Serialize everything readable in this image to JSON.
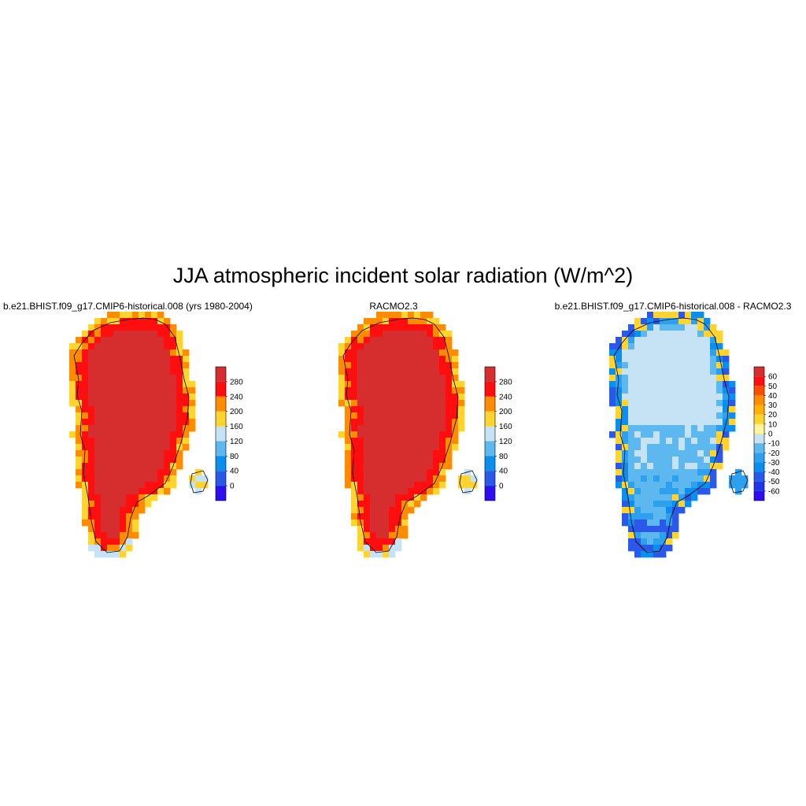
{
  "figure": {
    "title": "JJA atmospheric incident solar radiation (W/m^2)"
  },
  "panels": [
    {
      "title": "b.e21.BHIST.f09_g17.CMIP6-historical.008 (yrs 1980-2004)",
      "kind": "abs",
      "colorbar": {
        "labels": [
          "280",
          "240",
          "200",
          "160",
          "120",
          "80",
          "40",
          "0"
        ],
        "colors": [
          "#d62e2e",
          "#fe0e0e",
          "#ff8c00",
          "#ffd42f",
          "#c5e3f4",
          "#5cb8ee",
          "#0a8fef",
          "#2a58e8",
          "#2e0ef1"
        ]
      }
    },
    {
      "title": "RACMO2.3",
      "kind": "abs",
      "colorbar": {
        "labels": [
          "280",
          "240",
          "200",
          "160",
          "120",
          "80",
          "40",
          "0"
        ],
        "colors": [
          "#d62e2e",
          "#fe0e0e",
          "#ff8c00",
          "#ffd42f",
          "#c5e3f4",
          "#5cb8ee",
          "#0a8fef",
          "#2a58e8",
          "#2e0ef1"
        ]
      }
    },
    {
      "title": "b.e21.BHIST.f09_g17.CMIP6-historical.008 - RACMO2.3",
      "kind": "diff",
      "colorbar": {
        "labels": [
          "60",
          "50",
          "40",
          "30",
          "20",
          "10",
          "0",
          "-10",
          "-20",
          "-30",
          "-40",
          "-50",
          "-60"
        ],
        "colors": [
          "#d62e2e",
          "#fe0e0e",
          "#ff4d00",
          "#ff8c00",
          "#ffb000",
          "#ffd42f",
          "#fff59a",
          "#c5e3f4",
          "#5cb8ee",
          "#2ea0f0",
          "#0a8fef",
          "#2a58e8",
          "#1e36e6",
          "#2e0ef1"
        ]
      }
    }
  ]
}
